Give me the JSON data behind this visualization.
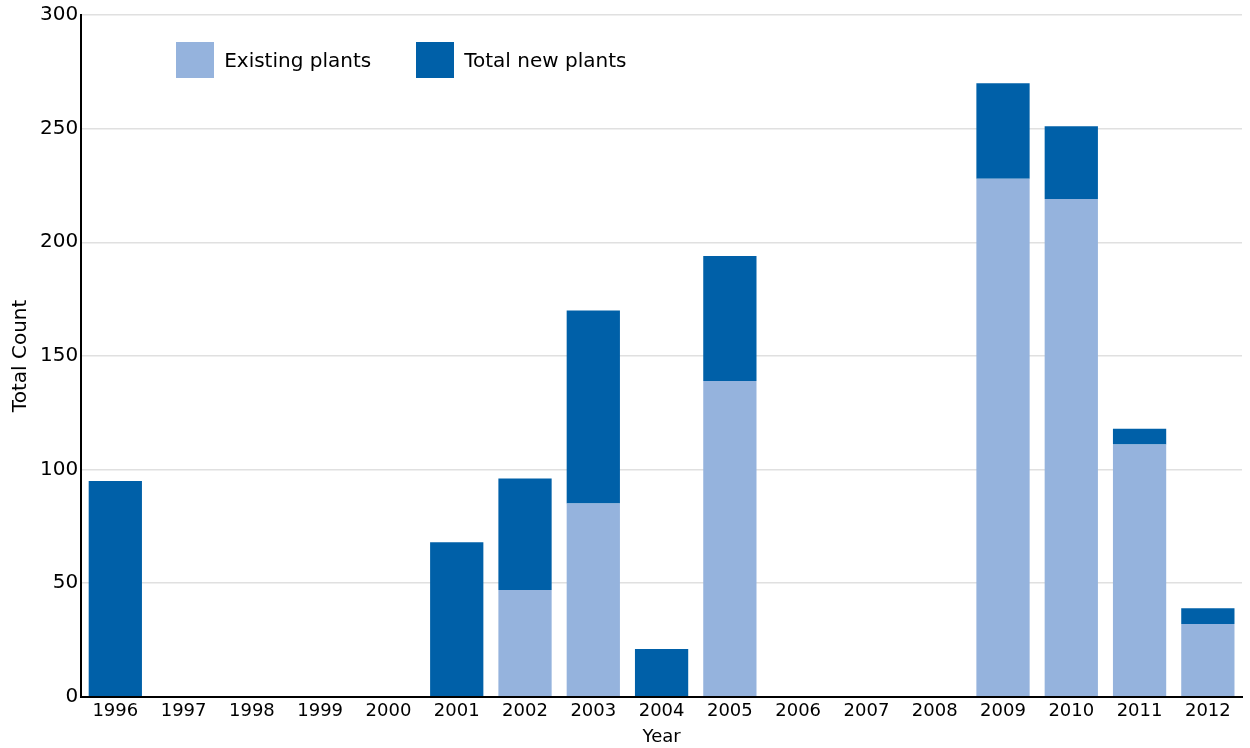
{
  "chart_data": {
    "type": "bar",
    "stacked": true,
    "xlabel": "Year",
    "ylabel": "Total Count",
    "categories": [
      "1996",
      "1997",
      "1998",
      "1999",
      "2000",
      "2001",
      "2002",
      "2003",
      "2004",
      "2005",
      "2006",
      "2007",
      "2008",
      "2009",
      "2010",
      "2011",
      "2012"
    ],
    "series": [
      {
        "name": "Existing plants",
        "color": "#95b3dd",
        "values": [
          null,
          null,
          null,
          null,
          null,
          null,
          47,
          85,
          null,
          139,
          null,
          null,
          null,
          228,
          219,
          111,
          32
        ]
      },
      {
        "name": "Total new plants",
        "color": "#0060a8",
        "values": [
          95,
          null,
          null,
          null,
          null,
          68,
          49,
          85,
          21,
          55,
          null,
          null,
          null,
          42,
          32,
          7,
          7
        ]
      }
    ],
    "ylim": [
      0,
      300
    ],
    "yticks": [
      0,
      50,
      100,
      150,
      200,
      250,
      300
    ],
    "grid": "y",
    "legend": "top left"
  }
}
